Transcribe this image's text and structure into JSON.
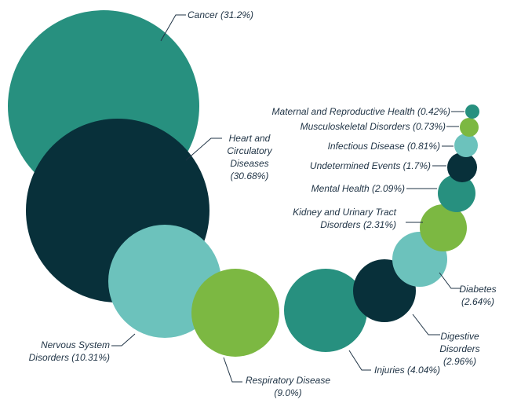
{
  "chart_data": {
    "type": "bubble",
    "title": "",
    "colors": {
      "teal": "#27907f",
      "navy": "#08303a",
      "light_teal": "#6cc2bc",
      "green": "#7cb842"
    },
    "items": [
      {
        "name": "Cancer",
        "value": 31.2,
        "color": "teal",
        "label_lines": [
          "Cancer (31.2%)"
        ]
      },
      {
        "name": "Heart and Circulatory Diseases",
        "value": 30.68,
        "color": "navy",
        "label_lines": [
          "Heart and",
          "Circulatory",
          "Diseases",
          "(30.68%)"
        ]
      },
      {
        "name": "Nervous System Disorders",
        "value": 10.31,
        "color": "light_teal",
        "label_lines": [
          "Nervous System",
          "Disorders (10.31%)"
        ]
      },
      {
        "name": "Respiratory Disease",
        "value": 9.0,
        "color": "green",
        "label_lines": [
          "Respiratory Disease",
          "(9.0%)"
        ]
      },
      {
        "name": "Injuries",
        "value": 4.04,
        "color": "teal",
        "label_lines": [
          "Injuries (4.04%)"
        ]
      },
      {
        "name": "Digestive Disorders",
        "value": 2.96,
        "color": "navy",
        "label_lines": [
          "Digestive",
          "Disorders",
          "(2.96%)"
        ]
      },
      {
        "name": "Diabetes",
        "value": 2.64,
        "color": "light_teal",
        "label_lines": [
          "Diabetes",
          "(2.64%)"
        ]
      },
      {
        "name": "Kidney and Urinary Tract Disorders",
        "value": 2.31,
        "color": "green",
        "label_lines": [
          "Kidney and Urinary Tract",
          "Disorders (2.31%)"
        ]
      },
      {
        "name": "Mental Health",
        "value": 2.09,
        "color": "teal",
        "label_lines": [
          "Mental Health (2.09%)"
        ]
      },
      {
        "name": "Undetermined Events",
        "value": 1.7,
        "color": "navy",
        "label_lines": [
          "Undetermined Events (1.7%)"
        ]
      },
      {
        "name": "Infectious Disease",
        "value": 0.81,
        "color": "light_teal",
        "label_lines": [
          "Infectious Disease (0.81%)"
        ]
      },
      {
        "name": "Musculoskeletal Disorders",
        "value": 0.73,
        "color": "green",
        "label_lines": [
          "Musculoskeletal Disorders (0.73%)"
        ]
      },
      {
        "name": "Maternal and Reproductive Health",
        "value": 0.42,
        "color": "teal",
        "label_lines": [
          "Maternal and Reproductive Health (0.42%)"
        ]
      }
    ]
  }
}
